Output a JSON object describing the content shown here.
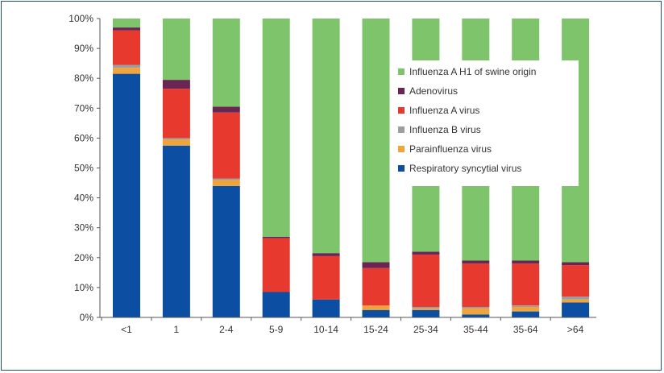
{
  "chart_data": {
    "type": "bar",
    "stacked": true,
    "normalized": true,
    "title": "",
    "xlabel": "",
    "ylabel": "",
    "ylim": [
      0,
      100
    ],
    "grid": false,
    "legend_position": "top-right",
    "y_ticks": [
      "0%",
      "10%",
      "20%",
      "30%",
      "40%",
      "50%",
      "60%",
      "70%",
      "80%",
      "90%",
      "100%"
    ],
    "categories": [
      "<1",
      "1",
      "2-4",
      "5-9",
      "10-14",
      "15-24",
      "25-34",
      "35-44",
      "35-64",
      ">64"
    ],
    "series": [
      {
        "name": "Respiratory syncytial virus",
        "color": "#0b4ea2",
        "values": [
          81.5,
          57.5,
          44,
          8.5,
          6,
          2.5,
          2.5,
          1,
          2,
          5
        ]
      },
      {
        "name": "Parainfluenza virus",
        "color": "#f0a43a",
        "values": [
          2,
          2,
          2,
          0,
          0,
          1.5,
          0.5,
          2,
          1.5,
          1
        ]
      },
      {
        "name": "Influenza B virus",
        "color": "#9e9e9e",
        "values": [
          1,
          0.5,
          0.5,
          0,
          0,
          0,
          0.5,
          0.5,
          0.5,
          1
        ]
      },
      {
        "name": "Influenza A virus",
        "color": "#e8392f",
        "values": [
          11.5,
          16.5,
          22,
          18,
          14.5,
          12.5,
          17.5,
          14.5,
          14,
          10.5
        ]
      },
      {
        "name": "Adenovirus",
        "color": "#6b2552",
        "values": [
          1,
          3,
          2,
          0.5,
          1,
          2,
          1,
          1,
          1,
          1
        ]
      },
      {
        "name": "Influenza A H1 of swine origin",
        "color": "#7ec46b",
        "values": [
          3,
          20.5,
          29.5,
          73,
          78.5,
          81.5,
          78,
          81,
          81,
          81.5
        ]
      }
    ],
    "legend_order": [
      "Influenza A H1 of swine origin",
      "Adenovirus",
      "Influenza A virus",
      "Influenza B virus",
      "Parainfluenza virus",
      "Respiratory syncytial virus"
    ]
  }
}
